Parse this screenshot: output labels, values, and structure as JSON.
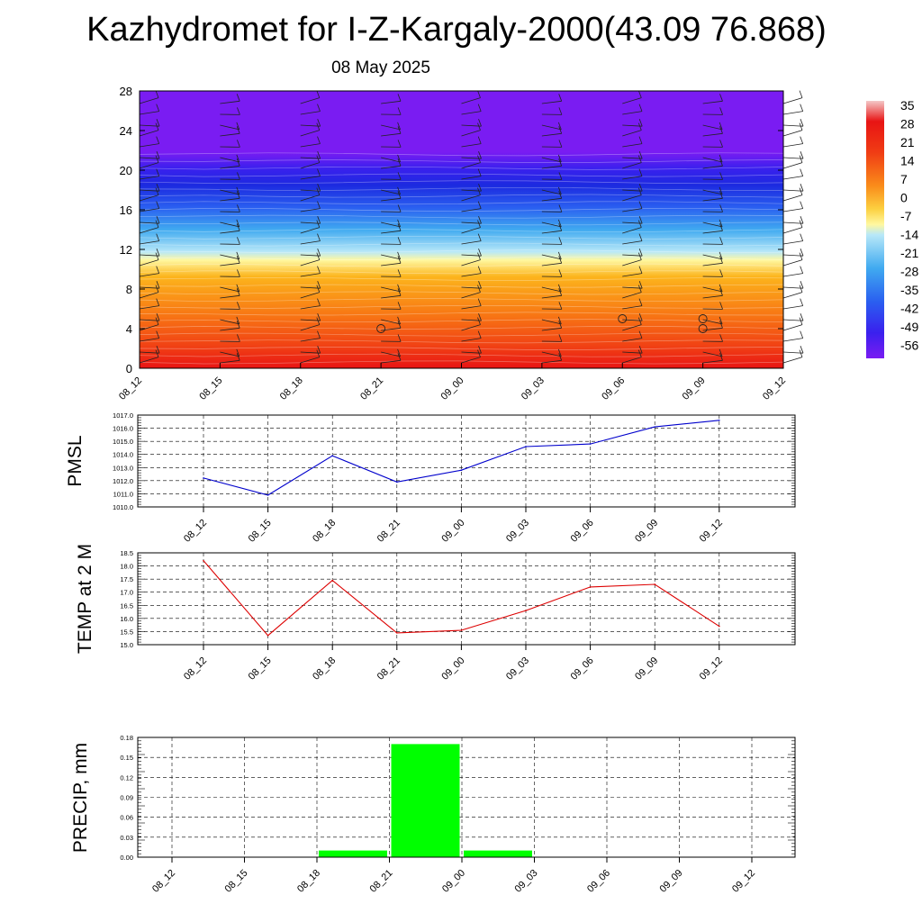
{
  "title": "Kazhydromet for I-Z-Kargaly-2000(43.09 76.868)",
  "subtitle": "08 May 2025",
  "chart_data": [
    {
      "type": "heatmap",
      "name": "vertical temperature cross-section with wind barbs",
      "x_ticks": [
        "08_12",
        "08_15",
        "08_18",
        "08_21",
        "09_00",
        "09_03",
        "09_06",
        "09_09",
        "09_12"
      ],
      "y_ticks": [
        "0",
        "4",
        "8",
        "12",
        "16",
        "20",
        "24",
        "28"
      ],
      "ylim": [
        0,
        28
      ],
      "colorbar_labels": [
        "35",
        "28",
        "21",
        "14",
        "7",
        "0",
        "-7",
        "-14",
        "-21",
        "-28",
        "-35",
        "-42",
        "-49",
        "-56"
      ],
      "colors": {
        "min": "#7a1cf2",
        "max": "#e81414"
      }
    },
    {
      "type": "line",
      "ylabel": "PMSL",
      "categories": [
        "08_12",
        "08_15",
        "08_18",
        "08_21",
        "09_00",
        "09_03",
        "09_06",
        "09_09",
        "09_12"
      ],
      "values": [
        1012.2,
        1010.9,
        1013.9,
        1011.9,
        1012.8,
        1014.6,
        1014.8,
        1016.1,
        1016.6
      ],
      "ylim": [
        1010.0,
        1017.0
      ],
      "y_ticks": [
        "1010.0",
        "1011.0",
        "1012.0",
        "1013.0",
        "1014.0",
        "1015.0",
        "1016.0",
        "1017.0"
      ],
      "color": "#0000cc",
      "grid": true
    },
    {
      "type": "line",
      "ylabel": "TEMP at 2 M",
      "categories": [
        "08_12",
        "08_15",
        "08_18",
        "08_21",
        "09_00",
        "09_03",
        "09_06",
        "09_09",
        "09_12"
      ],
      "values": [
        18.2,
        15.35,
        17.45,
        15.45,
        15.55,
        16.3,
        17.2,
        17.3,
        15.7
      ],
      "ylim": [
        15.0,
        18.5
      ],
      "y_ticks": [
        "15.0",
        "15.5",
        "16.0",
        "16.5",
        "17.0",
        "17.5",
        "18.0",
        "18.5"
      ],
      "color": "#dd0000",
      "grid": true
    },
    {
      "type": "bar",
      "ylabel": "PRECIP, mm",
      "categories": [
        "08_12",
        "08_15",
        "08_18",
        "08_21",
        "09_00",
        "09_03",
        "09_06",
        "09_09",
        "09_12"
      ],
      "values": [
        0,
        0,
        0.01,
        0.17,
        0.01,
        0,
        0,
        0,
        0
      ],
      "ylim": [
        0,
        0.18
      ],
      "y_ticks": [
        "0.00",
        "0.03",
        "0.06",
        "0.09",
        "0.12",
        "0.15",
        "0.18"
      ],
      "color": "#00ff00",
      "grid": true
    }
  ]
}
